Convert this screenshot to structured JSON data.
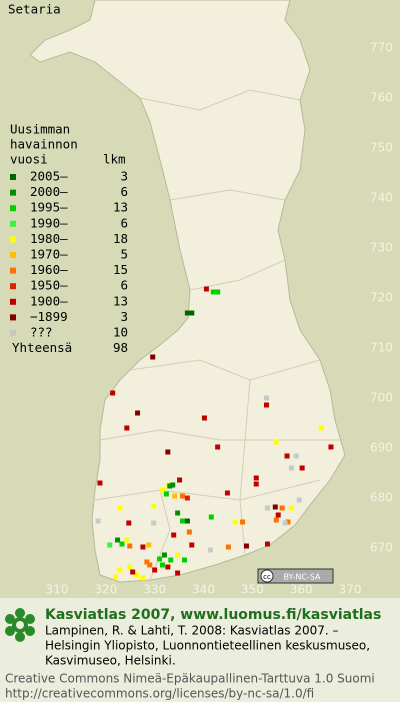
{
  "title": "Setaria",
  "legend": {
    "title": [
      "Uusimman",
      "havainnon",
      "vuosi"
    ],
    "count_header": "lkm",
    "rows": [
      {
        "label": "2005–",
        "count": 3,
        "color": "#006400"
      },
      {
        "label": "2000–",
        "count": 6,
        "color": "#009000"
      },
      {
        "label": "1995–",
        "count": 13,
        "color": "#00d000"
      },
      {
        "label": "1990–",
        "count": 6,
        "color": "#40f040"
      },
      {
        "label": "1980–",
        "count": 18,
        "color": "#ffff00"
      },
      {
        "label": "1970–",
        "count": 5,
        "color": "#ffc000"
      },
      {
        "label": "1960–",
        "count": 15,
        "color": "#ff7000"
      },
      {
        "label": "1950–",
        "count": 6,
        "color": "#e02000"
      },
      {
        "label": "1900–",
        "count": 13,
        "color": "#c00000"
      },
      {
        "label": "−1899",
        "count": 3,
        "color": "#800000"
      },
      {
        "label": "???",
        "count": 10,
        "color": "#c8c8c8"
      }
    ],
    "total_label": "Yhteensä",
    "total": 98
  },
  "grid_labels": {
    "north": [
      770,
      760,
      750,
      740,
      730,
      720,
      710,
      700,
      690,
      680,
      670
    ],
    "east": [
      310,
      320,
      330,
      340,
      350,
      360,
      370
    ]
  },
  "records": [
    [
      340.6,
      721.8,
      8
    ],
    [
      342.0,
      721.2,
      2
    ],
    [
      342.9,
      721.2,
      2
    ],
    [
      336.7,
      717,
      0
    ],
    [
      337.6,
      717,
      0
    ],
    [
      329.6,
      708.2,
      9
    ],
    [
      321.4,
      701,
      8
    ],
    [
      352.9,
      700,
      10
    ],
    [
      352.9,
      698.6,
      8
    ],
    [
      326.5,
      697,
      9
    ],
    [
      340.2,
      696,
      8
    ],
    [
      324.3,
      694,
      8
    ],
    [
      364.1,
      694,
      4
    ],
    [
      332.7,
      689.2,
      9
    ],
    [
      342.9,
      690.2,
      8
    ],
    [
      354.9,
      691.2,
      4
    ],
    [
      357.1,
      688.4,
      8
    ],
    [
      359.0,
      688.4,
      10
    ],
    [
      358.0,
      686,
      10
    ],
    [
      360.2,
      686,
      8
    ],
    [
      366.1,
      690.2,
      8
    ],
    [
      350.8,
      684,
      8
    ],
    [
      350.8,
      682.8,
      8
    ],
    [
      335.1,
      683.6,
      8
    ],
    [
      332.9,
      682.6,
      4
    ],
    [
      331.6,
      681.6,
      4
    ],
    [
      333.1,
      682.4,
      1
    ],
    [
      333.7,
      682.6,
      1
    ],
    [
      332.4,
      680.8,
      2
    ],
    [
      334.1,
      680.4,
      5
    ],
    [
      335.7,
      680.4,
      6
    ],
    [
      336.7,
      680,
      7
    ],
    [
      344.9,
      681,
      8
    ],
    [
      318.8,
      683,
      8
    ],
    [
      353.1,
      678,
      10
    ],
    [
      354.7,
      678.2,
      9
    ],
    [
      356.1,
      678,
      6
    ],
    [
      358.0,
      678,
      4
    ],
    [
      355.3,
      676.6,
      8
    ],
    [
      357.3,
      675.2,
      6
    ],
    [
      354.9,
      675.6,
      6
    ],
    [
      359.6,
      679.6,
      10
    ],
    [
      322.9,
      678,
      4
    ],
    [
      329.8,
      678.4,
      4
    ],
    [
      334.7,
      677,
      1
    ],
    [
      335.7,
      675.4,
      2
    ],
    [
      336.7,
      675.4,
      0
    ],
    [
      341.6,
      676.2,
      2
    ],
    [
      346.5,
      675.2,
      4
    ],
    [
      348.0,
      675.2,
      6
    ],
    [
      318.4,
      675.4,
      10
    ],
    [
      329.8,
      675,
      10
    ],
    [
      324.7,
      675,
      8
    ],
    [
      322.4,
      671.6,
      1
    ],
    [
      323.3,
      670.8,
      2
    ],
    [
      324.3,
      671.6,
      4
    ],
    [
      320.8,
      670.6,
      3
    ],
    [
      324.9,
      670.4,
      6
    ],
    [
      327.6,
      670.2,
      8
    ],
    [
      328.8,
      670.6,
      5
    ],
    [
      333.9,
      672.6,
      8
    ],
    [
      337.1,
      673.2,
      6
    ],
    [
      337.6,
      670.6,
      8
    ],
    [
      341.4,
      669.6,
      10
    ],
    [
      345.1,
      670.2,
      6
    ],
    [
      348.8,
      670.4,
      9
    ],
    [
      353.1,
      670.8,
      8
    ],
    [
      331.0,
      667.8,
      2
    ],
    [
      332.0,
      668.6,
      1
    ],
    [
      333.3,
      667.6,
      2
    ],
    [
      334.7,
      668.6,
      4
    ],
    [
      336.1,
      667.6,
      2
    ],
    [
      331.6,
      666.6,
      2
    ],
    [
      332.7,
      666.2,
      8
    ],
    [
      324.9,
      666.2,
      4
    ],
    [
      329.0,
      666.6,
      6
    ],
    [
      326.3,
      664.6,
      4
    ],
    [
      322.9,
      665.6,
      4
    ],
    [
      322.0,
      664.2,
      4
    ],
    [
      325.5,
      665.2,
      8
    ],
    [
      327.6,
      664,
      4
    ],
    [
      330.0,
      665.6,
      8
    ],
    [
      328.4,
      667.2,
      6
    ],
    [
      334.7,
      665,
      8
    ],
    [
      356.7,
      675,
      10
    ]
  ],
  "cc_badge": "BY-NC-SA",
  "footer": {
    "heading": "Kasviatlas 2007, www.luomus.fi/kasviatlas",
    "citation": [
      "Lampinen, R. & Lahti, T. 2008: Kasviatlas 2007. –",
      "Helsingin Yliopisto, Luonnontieteellinen keskusmuseo,",
      "Kasvimuseo, Helsinki."
    ],
    "license": [
      "Creative Commons Nimeä-Epäkaupallinen-Tarttuva 1.0 Suomi",
      "http://creativecommons.org/licenses/by-nc-sa/1.0/fi"
    ]
  }
}
